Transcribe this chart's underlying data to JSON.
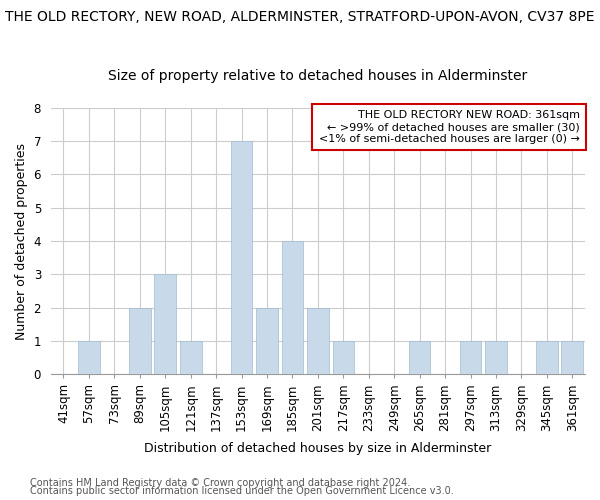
{
  "title_line1": "THE OLD RECTORY, NEW ROAD, ALDERMINSTER, STRATFORD-UPON-AVON, CV37 8PE",
  "title_line2": "Size of property relative to detached houses in Alderminster",
  "xlabel": "Distribution of detached houses by size in Alderminster",
  "ylabel": "Number of detached properties",
  "categories": [
    "41sqm",
    "57sqm",
    "73sqm",
    "89sqm",
    "105sqm",
    "121sqm",
    "137sqm",
    "153sqm",
    "169sqm",
    "185sqm",
    "201sqm",
    "217sqm",
    "233sqm",
    "249sqm",
    "265sqm",
    "281sqm",
    "297sqm",
    "313sqm",
    "329sqm",
    "345sqm",
    "361sqm"
  ],
  "values": [
    0,
    1,
    0,
    2,
    3,
    1,
    0,
    7,
    2,
    4,
    2,
    1,
    0,
    0,
    1,
    0,
    1,
    1,
    0,
    1,
    1
  ],
  "bar_color": "#c8daea",
  "bar_edge_color": "#a0bcd0",
  "highlight_index": 20,
  "annotation_box_edge_color": "#cc0000",
  "annotation_lines": [
    "THE OLD RECTORY NEW ROAD: 361sqm",
    "← >99% of detached houses are smaller (30)",
    "<1% of semi-detached houses are larger (0) →"
  ],
  "ylim": [
    0,
    8
  ],
  "yticks": [
    0,
    1,
    2,
    3,
    4,
    5,
    6,
    7,
    8
  ],
  "footer_line1": "Contains HM Land Registry data © Crown copyright and database right 2024.",
  "footer_line2": "Contains public sector information licensed under the Open Government Licence v3.0.",
  "background_color": "#ffffff",
  "grid_color": "#cccccc",
  "title_fontsize": 10,
  "subtitle_fontsize": 10,
  "axis_label_fontsize": 9,
  "tick_fontsize": 8.5,
  "annotation_fontsize": 8,
  "footer_fontsize": 7
}
